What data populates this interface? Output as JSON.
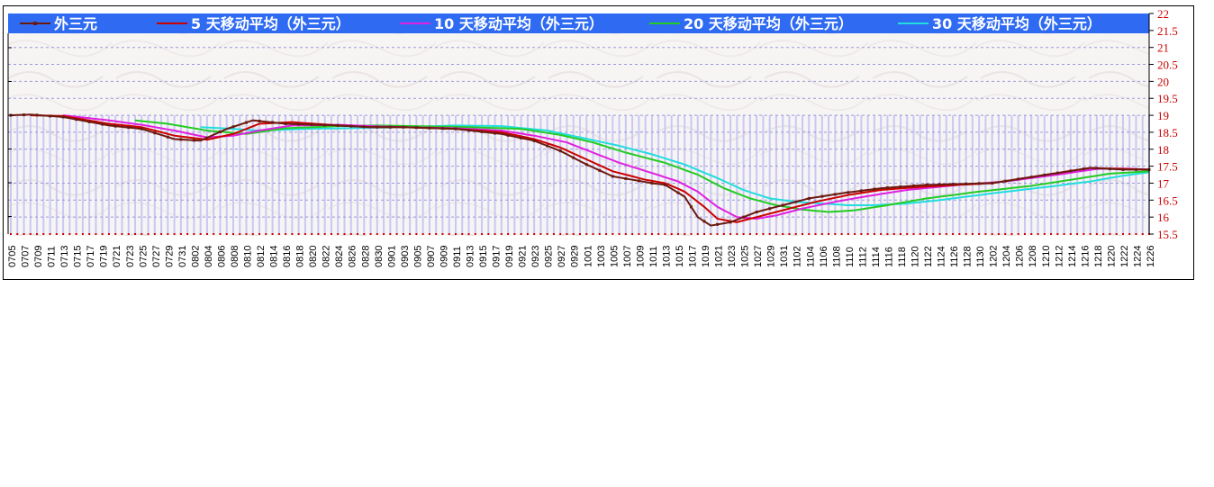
{
  "chart_data": {
    "type": "line",
    "legend_position": "top",
    "legend": [
      {
        "name": "外三元",
        "color": "#6b1a10",
        "marker": true
      },
      {
        "name": "5 天移动平均（外三元）",
        "color": "#cc0000"
      },
      {
        "name": "10 天移动平均（外三元）",
        "color": "#e020e0"
      },
      {
        "name": "20 天移动平均（外三元）",
        "color": "#22cc22"
      },
      {
        "name": "30 天移动平均（外三元）",
        "color": "#22dddd"
      }
    ],
    "yaxis": {
      "side": "right",
      "min": 15.5,
      "max": 22,
      "step": 0.5,
      "ticks": [
        "15.5",
        "16",
        "16.5",
        "17",
        "17.5",
        "18",
        "18.5",
        "19",
        "19.5",
        "20",
        "20.5",
        "21",
        "21.5",
        "22"
      ]
    },
    "grid": {
      "horizontal": true,
      "style": "dashed",
      "color": "#9a9adc"
    },
    "x_ticks": [
      "0705",
      "0707",
      "0709",
      "0711",
      "0713",
      "0715",
      "0717",
      "0719",
      "0721",
      "0723",
      "0725",
      "0727",
      "0729",
      "0731",
      "0802",
      "0804",
      "0806",
      "0808",
      "0810",
      "0812",
      "0814",
      "0816",
      "0818",
      "0820",
      "0822",
      "0824",
      "0826",
      "0828",
      "0830",
      "0901",
      "0903",
      "0905",
      "0907",
      "0909",
      "0911",
      "0913",
      "0915",
      "0917",
      "0919",
      "0921",
      "0923",
      "0925",
      "0927",
      "0929",
      "1001",
      "1003",
      "1005",
      "1007",
      "1009",
      "1011",
      "1013",
      "1015",
      "1017",
      "1019",
      "1021",
      "1023",
      "1025",
      "1027",
      "1029",
      "1031",
      "1102",
      "1104",
      "1106",
      "1108",
      "1110",
      "1112",
      "1114",
      "1116",
      "1118",
      "1120",
      "1122",
      "1124",
      "1126",
      "1128",
      "1130",
      "1202",
      "1204",
      "1206",
      "1208",
      "1210",
      "1212",
      "1214",
      "1216",
      "1218",
      "1220",
      "1222",
      "1224",
      "1226"
    ],
    "bars_color": "#c8c8f4",
    "n_days": 175,
    "series": [
      {
        "name": "外三元",
        "color": "#6b1a10",
        "keys": [
          [
            0,
            19.0
          ],
          [
            3,
            19.02
          ],
          [
            8,
            18.95
          ],
          [
            15,
            18.7
          ],
          [
            20,
            18.6
          ],
          [
            25,
            18.3
          ],
          [
            29,
            18.25
          ],
          [
            33,
            18.6
          ],
          [
            37,
            18.85
          ],
          [
            42,
            18.75
          ],
          [
            50,
            18.7
          ],
          [
            55,
            18.65
          ],
          [
            60,
            18.65
          ],
          [
            68,
            18.6
          ],
          [
            75,
            18.45
          ],
          [
            80,
            18.25
          ],
          [
            84,
            17.95
          ],
          [
            88,
            17.55
          ],
          [
            92,
            17.2
          ],
          [
            98,
            17.0
          ],
          [
            100,
            16.95
          ],
          [
            103,
            16.6
          ],
          [
            105,
            16.0
          ],
          [
            107,
            15.75
          ],
          [
            110,
            15.85
          ],
          [
            114,
            16.15
          ],
          [
            118,
            16.35
          ],
          [
            122,
            16.55
          ],
          [
            127,
            16.7
          ],
          [
            133,
            16.85
          ],
          [
            140,
            16.95
          ],
          [
            150,
            17.0
          ],
          [
            160,
            17.3
          ],
          [
            165,
            17.45
          ],
          [
            170,
            17.4
          ],
          [
            174,
            17.4
          ]
        ]
      },
      {
        "name": "5 天移动平均（外三元）",
        "color": "#cc0000",
        "keys": [
          [
            3,
            19.0
          ],
          [
            8,
            18.98
          ],
          [
            15,
            18.75
          ],
          [
            20,
            18.65
          ],
          [
            25,
            18.4
          ],
          [
            30,
            18.28
          ],
          [
            34,
            18.45
          ],
          [
            38,
            18.75
          ],
          [
            43,
            18.8
          ],
          [
            50,
            18.7
          ],
          [
            55,
            18.65
          ],
          [
            60,
            18.65
          ],
          [
            68,
            18.6
          ],
          [
            75,
            18.5
          ],
          [
            80,
            18.3
          ],
          [
            84,
            18.05
          ],
          [
            88,
            17.7
          ],
          [
            92,
            17.35
          ],
          [
            97,
            17.1
          ],
          [
            100,
            17.0
          ],
          [
            103,
            16.75
          ],
          [
            106,
            16.3
          ],
          [
            108,
            15.95
          ],
          [
            111,
            15.85
          ],
          [
            115,
            16.05
          ],
          [
            119,
            16.25
          ],
          [
            123,
            16.45
          ],
          [
            128,
            16.65
          ],
          [
            133,
            16.8
          ],
          [
            140,
            16.9
          ],
          [
            150,
            17.0
          ],
          [
            160,
            17.3
          ],
          [
            165,
            17.45
          ],
          [
            170,
            17.42
          ],
          [
            174,
            17.4
          ]
        ]
      },
      {
        "name": "10 天移动平均（外三元）",
        "color": "#e020e0",
        "keys": [
          [
            8,
            19.0
          ],
          [
            15,
            18.85
          ],
          [
            20,
            18.72
          ],
          [
            25,
            18.55
          ],
          [
            30,
            18.35
          ],
          [
            34,
            18.4
          ],
          [
            38,
            18.55
          ],
          [
            43,
            18.7
          ],
          [
            50,
            18.72
          ],
          [
            55,
            18.68
          ],
          [
            60,
            18.65
          ],
          [
            68,
            18.62
          ],
          [
            75,
            18.55
          ],
          [
            80,
            18.4
          ],
          [
            85,
            18.2
          ],
          [
            89,
            17.9
          ],
          [
            93,
            17.6
          ],
          [
            98,
            17.3
          ],
          [
            102,
            17.05
          ],
          [
            105,
            16.75
          ],
          [
            108,
            16.3
          ],
          [
            111,
            16.0
          ],
          [
            114,
            15.95
          ],
          [
            117,
            16.05
          ],
          [
            121,
            16.25
          ],
          [
            126,
            16.45
          ],
          [
            131,
            16.62
          ],
          [
            137,
            16.8
          ],
          [
            145,
            16.95
          ],
          [
            152,
            17.05
          ],
          [
            160,
            17.25
          ],
          [
            166,
            17.42
          ],
          [
            170,
            17.43
          ],
          [
            174,
            17.4
          ]
        ]
      },
      {
        "name": "20 天移动平均（外三元）",
        "color": "#22cc22",
        "keys": [
          [
            19,
            18.85
          ],
          [
            24,
            18.75
          ],
          [
            30,
            18.55
          ],
          [
            36,
            18.45
          ],
          [
            42,
            18.62
          ],
          [
            50,
            18.68
          ],
          [
            56,
            18.7
          ],
          [
            62,
            18.68
          ],
          [
            70,
            18.65
          ],
          [
            78,
            18.6
          ],
          [
            84,
            18.42
          ],
          [
            89,
            18.2
          ],
          [
            94,
            17.9
          ],
          [
            100,
            17.6
          ],
          [
            105,
            17.25
          ],
          [
            109,
            16.85
          ],
          [
            113,
            16.55
          ],
          [
            117,
            16.35
          ],
          [
            121,
            16.22
          ],
          [
            125,
            16.15
          ],
          [
            129,
            16.2
          ],
          [
            134,
            16.35
          ],
          [
            140,
            16.55
          ],
          [
            148,
            16.75
          ],
          [
            156,
            16.92
          ],
          [
            162,
            17.1
          ],
          [
            168,
            17.28
          ],
          [
            174,
            17.35
          ]
        ]
      },
      {
        "name": "30 天移动平均（外三元）",
        "color": "#22dddd",
        "keys": [
          [
            29,
            18.65
          ],
          [
            34,
            18.6
          ],
          [
            38,
            18.55
          ],
          [
            45,
            18.6
          ],
          [
            52,
            18.62
          ],
          [
            60,
            18.65
          ],
          [
            68,
            18.7
          ],
          [
            75,
            18.68
          ],
          [
            82,
            18.55
          ],
          [
            87,
            18.35
          ],
          [
            93,
            18.1
          ],
          [
            98,
            17.85
          ],
          [
            103,
            17.55
          ],
          [
            108,
            17.15
          ],
          [
            112,
            16.8
          ],
          [
            116,
            16.55
          ],
          [
            120,
            16.45
          ],
          [
            124,
            16.4
          ],
          [
            128,
            16.35
          ],
          [
            132,
            16.35
          ],
          [
            137,
            16.4
          ],
          [
            142,
            16.5
          ],
          [
            150,
            16.7
          ],
          [
            158,
            16.88
          ],
          [
            165,
            17.05
          ],
          [
            170,
            17.22
          ],
          [
            174,
            17.32
          ]
        ]
      }
    ]
  }
}
